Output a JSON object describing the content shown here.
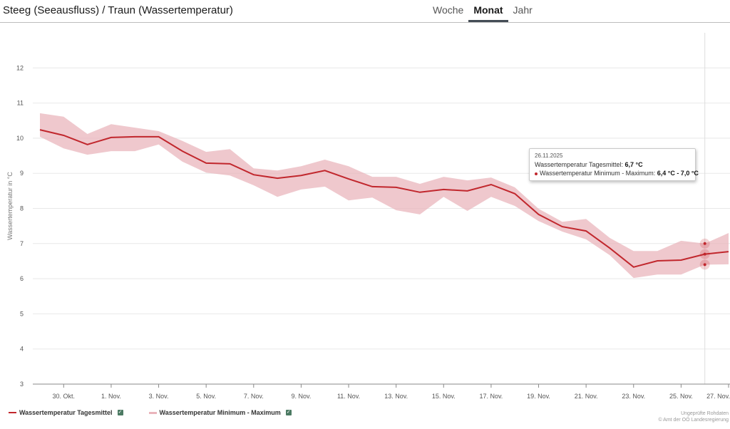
{
  "header": {
    "title": "Steeg (Seeausfluss) / Traun (Wassertemperatur)",
    "tabs": [
      {
        "label": "Woche",
        "active": false
      },
      {
        "label": "Monat",
        "active": true
      },
      {
        "label": "Jahr",
        "active": false
      }
    ]
  },
  "colors": {
    "mean_line": "#c1272d",
    "range_fill": "#eab5bc",
    "checkbox": "#4c7a63",
    "grid": "#e8e8e8",
    "axis": "#8a8a8a"
  },
  "tooltip": {
    "date": "26.11.2025",
    "mean_label": "Wassertemperatur Tagesmittel: ",
    "mean_value": "6,7 °C",
    "range_label": "Wassertemperatur Minimum - Maximum: ",
    "range_value": "6,4 °C - 7,0 °C"
  },
  "legend": [
    {
      "label": "Wassertemperatur Tagesmittel",
      "checked": true
    },
    {
      "label": "Wassertemperatur Minimum - Maximum",
      "checked": true
    }
  ],
  "credits": {
    "line1": "Ungeprüfte Rohdaten",
    "line2": "© Amt der OÖ Landesregierung"
  },
  "chart_data": {
    "type": "line",
    "title": "Steeg (Seeausfluss) / Traun (Wassertemperatur)",
    "xlabel": "",
    "ylabel": "Wassertemperatur in °C",
    "ylim": [
      3,
      13
    ],
    "yticks": [
      3,
      4,
      5,
      6,
      7,
      8,
      9,
      10,
      11,
      12
    ],
    "grid": true,
    "legend_position": "bottom-left",
    "xticks": [
      {
        "day": 1,
        "label": "30. Okt."
      },
      {
        "day": 3,
        "label": "1. Nov."
      },
      {
        "day": 5,
        "label": "3. Nov."
      },
      {
        "day": 7,
        "label": "5. Nov."
      },
      {
        "day": 9,
        "label": "7. Nov."
      },
      {
        "day": 11,
        "label": "9. Nov."
      },
      {
        "day": 13,
        "label": "11. Nov."
      },
      {
        "day": 15,
        "label": "13. Nov."
      },
      {
        "day": 17,
        "label": "15. Nov."
      },
      {
        "day": 19,
        "label": "17. Nov."
      },
      {
        "day": 21,
        "label": "19. Nov."
      },
      {
        "day": 23,
        "label": "21. Nov."
      },
      {
        "day": 25,
        "label": "23. Nov."
      },
      {
        "day": 27,
        "label": "25. Nov."
      },
      {
        "day": 29,
        "label": "27. Nov."
      }
    ],
    "x": [
      "29.10.2025",
      "30.10.2025",
      "31.10.2025",
      "01.11.2025",
      "02.11.2025",
      "03.11.2025",
      "04.11.2025",
      "05.11.2025",
      "06.11.2025",
      "07.11.2025",
      "08.11.2025",
      "09.11.2025",
      "10.11.2025",
      "11.11.2025",
      "12.11.2025",
      "13.11.2025",
      "14.11.2025",
      "15.11.2025",
      "16.11.2025",
      "17.11.2025",
      "18.11.2025",
      "19.11.2025",
      "20.11.2025",
      "21.11.2025",
      "22.11.2025",
      "23.11.2025",
      "24.11.2025",
      "25.11.2025",
      "26.11.2025",
      "27.11.2025"
    ],
    "series": [
      {
        "name": "Wassertemperatur Tagesmittel",
        "type": "line",
        "values": [
          10.24,
          10.08,
          9.82,
          10.02,
          10.04,
          10.04,
          9.63,
          9.29,
          9.27,
          8.96,
          8.86,
          8.94,
          9.08,
          8.84,
          8.62,
          8.6,
          8.46,
          8.54,
          8.5,
          8.68,
          8.42,
          7.83,
          7.48,
          7.36,
          6.87,
          6.33,
          6.51,
          6.53,
          6.7,
          6.77
        ]
      },
      {
        "name": "Wassertemperatur Minimum - Maximum",
        "type": "arearange",
        "min": [
          10.04,
          9.71,
          9.53,
          9.63,
          9.63,
          9.82,
          9.33,
          9.02,
          8.94,
          8.66,
          8.33,
          8.54,
          8.62,
          8.23,
          8.31,
          7.95,
          7.83,
          8.33,
          7.93,
          8.33,
          8.07,
          7.64,
          7.34,
          7.12,
          6.67,
          6.02,
          6.12,
          6.12,
          6.4,
          6.41
        ],
        "max": [
          10.71,
          10.61,
          10.12,
          10.4,
          10.3,
          10.2,
          9.92,
          9.61,
          9.69,
          9.14,
          9.08,
          9.2,
          9.39,
          9.2,
          8.9,
          8.9,
          8.7,
          8.9,
          8.8,
          8.88,
          8.6,
          7.99,
          7.62,
          7.7,
          7.16,
          6.79,
          6.79,
          7.08,
          7.0,
          7.3
        ]
      }
    ],
    "highlighted_index": 28
  }
}
